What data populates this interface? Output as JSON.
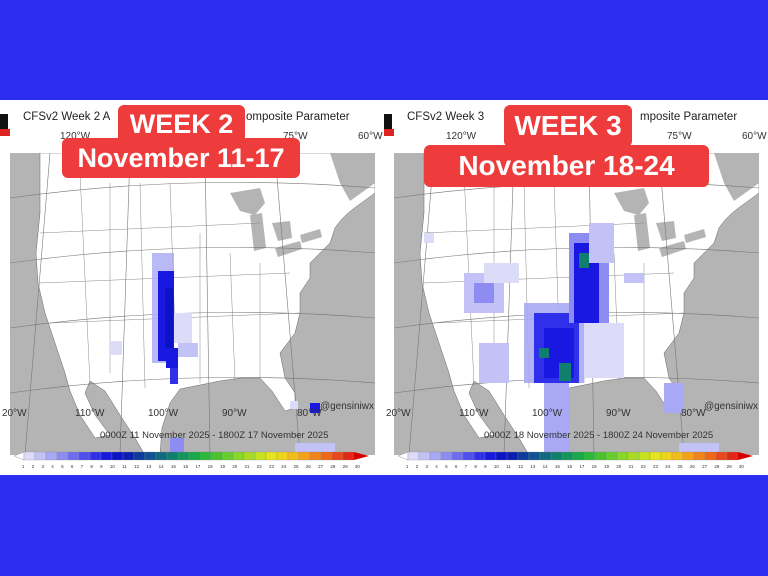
{
  "panels": [
    {
      "id": "week2",
      "title_left": "CFSv2 Week 2 A",
      "title_right": "omposite Parameter",
      "banner_week": "WEEK 2",
      "banner_dates": "November 11-17",
      "top_lon_labels": [
        "120°W",
        "75°W",
        "60°W"
      ],
      "bottom_lon_labels": [
        "20°W",
        "110°W",
        "100°W",
        "90°W",
        "80°W"
      ],
      "handle": "@gensiniwx",
      "date_range": "0000Z 11  November  2025  - 1800Z 17  November  2025"
    },
    {
      "id": "week3",
      "title_left": "CFSv2 Week 3",
      "title_right": "mposite Parameter",
      "banner_week": "WEEK 3",
      "banner_dates": "November 18-24",
      "top_lon_labels": [
        "120°W",
        "75°W",
        "60°W"
      ],
      "bottom_lon_labels": [
        "20°W",
        "110°W",
        "100°W",
        "90°W",
        "80°W"
      ],
      "handle": "@gensiniwx",
      "date_range": "0000Z 18  November  2025  - 1800Z 24  November  2025"
    }
  ],
  "colorbar": {
    "labels": [
      "1",
      "2",
      "3",
      "4",
      "5",
      "6",
      "7",
      "8",
      "9",
      "10",
      "11",
      "12",
      "13",
      "14",
      "15",
      "16",
      "17",
      "18",
      "19",
      "20",
      "21",
      "22",
      "23",
      "24",
      "25",
      "26",
      "27",
      "28",
      "29",
      "30"
    ],
    "colors": [
      "#dcdcf8",
      "#c2c2f6",
      "#a8a8f4",
      "#8c8cf2",
      "#6e6ef0",
      "#5050ee",
      "#3030ea",
      "#1818e0",
      "#0c12c8",
      "#0a1eb0",
      "#0c3aa0",
      "#0e5290",
      "#0f6a80",
      "#107f6e",
      "#13945c",
      "#18a84a",
      "#2cb83a",
      "#48c431",
      "#66ce2c",
      "#88d628",
      "#a8dc24",
      "#c8e21f",
      "#e6e41a",
      "#f2d41a",
      "#f4bc1a",
      "#f4a01a",
      "#f2841a",
      "#ee681a",
      "#ea4818",
      "#e42616"
    ],
    "colors_note": "blue-to-green-to-yellow-to-red scale"
  },
  "colors": {
    "background": "#2b2ef0",
    "banner": "#ee3b3b",
    "land": "#ffffff",
    "water": "#b4b4b4"
  }
}
